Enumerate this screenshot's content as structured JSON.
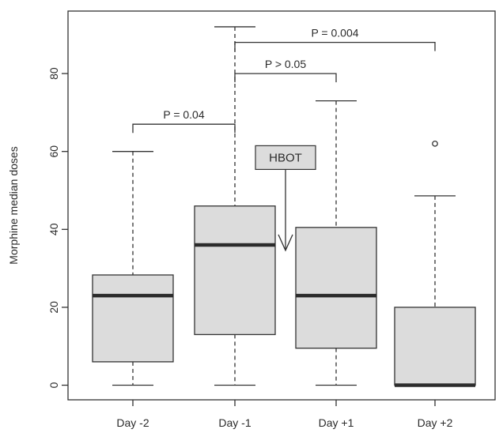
{
  "chart_data": {
    "type": "boxplot",
    "title": "",
    "xlabel": "",
    "ylabel": "Morphine median doses",
    "ylim": [
      -3.5,
      95
    ],
    "yticks": [
      0,
      20,
      40,
      60,
      80
    ],
    "categories": [
      "Day -2",
      "Day -1",
      "Day +1",
      "Day +2"
    ],
    "boxes": [
      {
        "category": "Day -2",
        "min": 0,
        "q1": 6,
        "median": 23,
        "q3": 28.3,
        "max": 60,
        "outliers": []
      },
      {
        "category": "Day -1",
        "min": 0,
        "q1": 13,
        "median": 36,
        "q3": 46,
        "max": 92,
        "outliers": []
      },
      {
        "category": "Day +1",
        "min": 0,
        "q1": 9.5,
        "median": 23,
        "q3": 40.5,
        "max": 73,
        "outliers": []
      },
      {
        "category": "Day +2",
        "min": 0,
        "q1": 0,
        "median": 0,
        "q3": 20,
        "max": 48.6,
        "outliers": [
          62
        ]
      }
    ],
    "comparisons": [
      {
        "from": "Day -2",
        "to": "Day -1",
        "label": "P = 0.04",
        "level": 67
      },
      {
        "from": "Day -1",
        "to": "Day +1",
        "label": "P > 0.05",
        "level": 80
      },
      {
        "from": "Day -1",
        "to": "Day +2",
        "label": "P = 0.004",
        "level": 88
      }
    ],
    "annotation": {
      "label": "HBOT",
      "between": [
        "Day -1",
        "Day +1"
      ],
      "points_to": 35,
      "box_level": 56
    },
    "grid": false,
    "legend": "none",
    "colors": {
      "box_fill": "#dcdcdc",
      "line": "#333333",
      "median": "#2c2c2c"
    }
  }
}
